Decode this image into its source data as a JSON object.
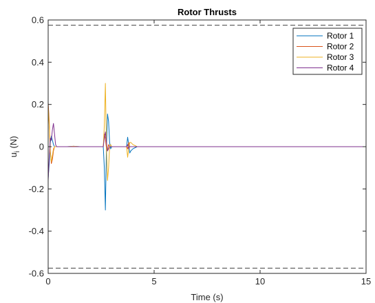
{
  "chart_data": {
    "type": "line",
    "title": "Rotor Thrusts",
    "xlabel": "Time (s)",
    "ylabel_main": "u",
    "ylabel_sub": "i",
    "ylabel_unit": " (N)",
    "xlim": [
      0,
      15
    ],
    "ylim": [
      -0.6,
      0.6
    ],
    "xticks": [
      0,
      5,
      10,
      15
    ],
    "xtick_labels": [
      "0",
      "5",
      "10",
      "15"
    ],
    "yticks": [
      -0.6,
      -0.4,
      -0.2,
      0,
      0.2,
      0.4,
      0.6
    ],
    "ytick_labels": [
      "-0.6",
      "-0.4",
      "-0.2",
      "0",
      "0.2",
      "0.4",
      "0.6"
    ],
    "grid": false,
    "legend_position": "top-right",
    "limit_lines": {
      "values": [
        0.575,
        -0.575
      ],
      "style": "dashed",
      "color": "#404040"
    },
    "series": [
      {
        "name": "Rotor 1",
        "color": "#0072BD",
        "x": [
          0,
          0.05,
          0.1,
          0.15,
          0.2,
          0.25,
          0.3,
          0.4,
          0.6,
          0.9,
          1.2,
          1.5,
          2.0,
          2.5,
          2.6,
          2.65,
          2.7,
          2.75,
          2.8,
          2.85,
          2.9,
          2.95,
          3.0,
          3.1,
          3.3,
          3.5,
          3.6,
          3.7,
          3.75,
          3.8,
          3.85,
          3.9,
          4.0,
          4.2,
          4.5,
          5.0,
          5.5,
          6.0,
          15
        ],
        "y": [
          -0.15,
          -0.08,
          0.02,
          0.05,
          0.03,
          0.01,
          0.0,
          0.0,
          0.0,
          0.0,
          0.002,
          0.0,
          0.0,
          0.0,
          0.0,
          -0.1,
          -0.3,
          0.0,
          0.155,
          0.12,
          0.02,
          -0.01,
          0.0,
          0.0,
          0.0,
          0.0,
          0.0,
          0.0,
          0.045,
          0.01,
          -0.03,
          -0.02,
          -0.01,
          0.0,
          0.0,
          0.0,
          0.0,
          0.0,
          0.0
        ]
      },
      {
        "name": "Rotor 2",
        "color": "#D95319",
        "x": [
          0,
          0.05,
          0.1,
          0.15,
          0.2,
          0.25,
          0.3,
          0.4,
          0.6,
          0.9,
          1.2,
          1.5,
          2.0,
          2.5,
          2.6,
          2.65,
          2.7,
          2.75,
          2.8,
          2.85,
          2.9,
          2.95,
          3.0,
          3.1,
          3.3,
          3.5,
          3.6,
          3.7,
          3.75,
          3.8,
          3.85,
          3.9,
          4.0,
          4.2,
          4.5,
          5.0,
          15
        ],
        "y": [
          0.21,
          0.12,
          -0.02,
          -0.08,
          -0.06,
          -0.02,
          0.0,
          0.0,
          0.0,
          0.0,
          0.0,
          0.0,
          0.0,
          0.0,
          0.0,
          0.06,
          0.04,
          -0.01,
          -0.02,
          0.01,
          0.0,
          0.0,
          0.0,
          0.0,
          0.0,
          0.0,
          0.0,
          0.0,
          -0.01,
          0.02,
          0.0,
          0.0,
          0.0,
          0.0,
          0.0,
          0.0,
          0.0
        ]
      },
      {
        "name": "Rotor 3",
        "color": "#EDB120",
        "x": [
          0,
          0.05,
          0.1,
          0.15,
          0.2,
          0.25,
          0.3,
          0.4,
          0.6,
          0.9,
          1.2,
          1.5,
          2.0,
          2.5,
          2.6,
          2.65,
          2.7,
          2.75,
          2.8,
          2.85,
          2.9,
          2.95,
          3.0,
          3.1,
          3.3,
          3.5,
          3.6,
          3.7,
          3.75,
          3.8,
          3.85,
          3.9,
          4.0,
          4.2,
          4.5,
          5.0,
          15
        ],
        "y": [
          0.19,
          0.1,
          -0.03,
          -0.07,
          -0.04,
          -0.01,
          0.0,
          0.0,
          0.0,
          0.0,
          0.002,
          0.0,
          0.0,
          0.0,
          0.0,
          0.1,
          0.3,
          0.0,
          -0.16,
          -0.1,
          0.0,
          0.01,
          0.0,
          0.0,
          0.0,
          0.0,
          0.0,
          0.0,
          -0.05,
          -0.01,
          0.02,
          0.02,
          0.01,
          0.0,
          0.0,
          0.0,
          0.0
        ]
      },
      {
        "name": "Rotor 4",
        "color": "#7E2F8E",
        "x": [
          0,
          0.05,
          0.1,
          0.15,
          0.2,
          0.25,
          0.3,
          0.35,
          0.4,
          0.5,
          0.6,
          0.9,
          1.2,
          1.5,
          2.0,
          2.5,
          2.6,
          2.65,
          2.7,
          2.75,
          2.8,
          2.85,
          2.9,
          2.95,
          3.0,
          3.1,
          3.3,
          3.5,
          3.6,
          3.7,
          3.75,
          3.8,
          3.85,
          3.9,
          4.0,
          4.5,
          5.0,
          15
        ],
        "y": [
          -0.16,
          -0.05,
          0.04,
          0.03,
          0.08,
          0.11,
          0.06,
          0.01,
          0.0,
          0.0,
          0.0,
          0.0,
          0.0,
          0.0,
          0.0,
          0.0,
          0.0,
          0.04,
          0.07,
          0.02,
          -0.02,
          -0.01,
          0.0,
          0.0,
          0.0,
          0.0,
          0.0,
          0.0,
          0.0,
          0.0,
          0.01,
          -0.01,
          0.0,
          0.0,
          0.0,
          0.0,
          0.0,
          0.0
        ]
      }
    ]
  }
}
